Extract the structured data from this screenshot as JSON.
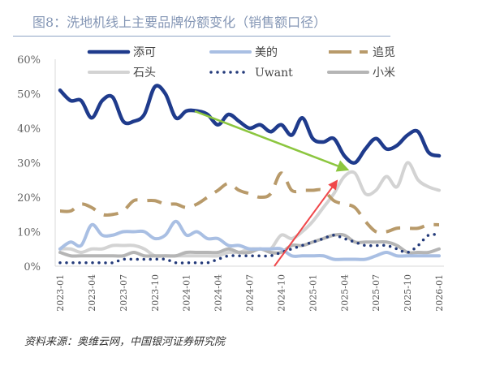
{
  "title": "图8：洗地机线上主要品牌份额变化（销售额口径）",
  "source": "资料来源：奥维云网，中国银河证券研究院",
  "chart_data": {
    "type": "line",
    "title": "图8：洗地机线上主要品牌份额变化（销售额口径）",
    "xlabel": "",
    "ylabel": "",
    "ylim": [
      0,
      60
    ],
    "yticks": [
      "0%",
      "10%",
      "20%",
      "30%",
      "40%",
      "50%",
      "60%"
    ],
    "xticks": [
      "2023-01",
      "2023-04",
      "2023-07",
      "2023-10",
      "2024-01",
      "2024-04",
      "2024-07",
      "2024-10",
      "2025-01",
      "2025-04",
      "2025-07",
      "2025-10",
      "2026-01"
    ],
    "x_start": "2023-01",
    "x_end": "2026-01",
    "frequency": "monthly",
    "grid": false,
    "legend_placement": "top",
    "series": [
      {
        "name": "添可",
        "color": "#1f3b8c",
        "style": "solid",
        "values": [
          51,
          48,
          48,
          43,
          48,
          49,
          42,
          42,
          44,
          52,
          50,
          43,
          45,
          45,
          44,
          41,
          44,
          42,
          40,
          41,
          39,
          41,
          38,
          43,
          37,
          36,
          37,
          32,
          30,
          34,
          37,
          34,
          35,
          38,
          39,
          33,
          32
        ]
      },
      {
        "name": "美的",
        "color": "#a9bfe3",
        "style": "solid",
        "values": [
          5,
          7,
          6,
          12,
          9,
          9,
          10,
          10,
          10,
          8,
          9,
          13,
          9,
          10,
          8,
          8,
          6,
          6,
          5,
          5,
          5,
          5,
          3,
          3,
          3,
          3,
          2,
          2,
          2,
          2,
          3,
          4,
          3,
          3,
          3,
          3,
          3
        ]
      },
      {
        "name": "追觅",
        "color": "#b89a6a",
        "style": "dashed",
        "values": [
          16,
          16,
          18,
          17,
          15,
          15,
          16,
          19,
          19,
          19,
          18,
          18,
          17,
          18,
          20,
          22,
          24,
          22,
          21,
          20,
          21,
          27,
          22,
          22,
          22,
          22,
          19,
          18,
          17,
          13,
          10,
          10,
          11,
          11,
          11,
          12,
          12
        ]
      },
      {
        "name": "石头",
        "color": "#d3d3d3",
        "style": "solid",
        "values": [
          5,
          5,
          4,
          5,
          5,
          6,
          6,
          6,
          5,
          3,
          3,
          3,
          3,
          3,
          3,
          3,
          4,
          4,
          5,
          5,
          5,
          9,
          8,
          10,
          13,
          17,
          21,
          26,
          27,
          21,
          22,
          26,
          23,
          30,
          25,
          23,
          22
        ]
      },
      {
        "name": "Uwant",
        "color": "#233a7a",
        "style": "dotted",
        "values": [
          1,
          1,
          1,
          1,
          1,
          1,
          2,
          2,
          2,
          2,
          2,
          1,
          1,
          1,
          1,
          2,
          3,
          3,
          3,
          3,
          3,
          4,
          5,
          6,
          7,
          8,
          9,
          8,
          7,
          6,
          6,
          6,
          5,
          4,
          6,
          9,
          9
        ]
      },
      {
        "name": "小米",
        "color": "#b5b5b5",
        "style": "solid",
        "values": [
          4,
          3,
          3,
          3,
          3,
          3,
          3,
          4,
          3,
          3,
          3,
          3,
          4,
          4,
          4,
          4,
          5,
          4,
          4,
          5,
          4,
          4,
          6,
          6,
          7,
          8,
          9,
          9,
          7,
          7,
          7,
          7,
          6,
          4,
          4,
          4,
          5
        ]
      }
    ],
    "annotations": [
      {
        "type": "arrow",
        "color": "#8cc63f",
        "from": "2024-01",
        "to": "2025-05",
        "meaning": "添可 decline"
      },
      {
        "type": "arrow",
        "color": "#f0474a",
        "from": "2024-10",
        "to": "2025-05",
        "meaning": "石头 rise"
      }
    ]
  }
}
